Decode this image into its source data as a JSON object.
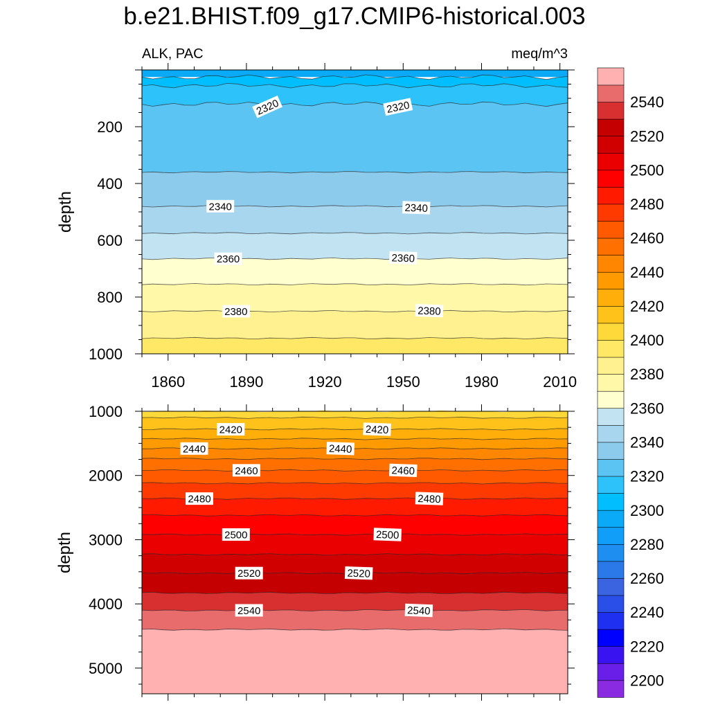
{
  "chart_data": {
    "type": "heatmap",
    "title": "b.e21.BHIST.f09_g17.CMIP6-historical.003",
    "left_label": "ALK, PAC",
    "right_label": "meq/m^3",
    "ylabel": "depth",
    "x_ticks": [
      1860,
      1890,
      1920,
      1950,
      1980,
      2010
    ],
    "xlim": [
      1850,
      2013
    ],
    "upper_panel": {
      "ylim": [
        0,
        1000
      ],
      "y_ticks": [
        200,
        400,
        600,
        800,
        1000
      ],
      "boundaries": [
        {
          "level": 2300,
          "depth": 25
        },
        {
          "level": 2310,
          "depth": 55
        },
        {
          "level": 2320,
          "depth": 120
        },
        {
          "level": 2330,
          "depth": 360
        },
        {
          "level": 2340,
          "depth": 480
        },
        {
          "level": 2350,
          "depth": 575
        },
        {
          "level": 2360,
          "depth": 665
        },
        {
          "level": 2370,
          "depth": 755
        },
        {
          "level": 2380,
          "depth": 850
        },
        {
          "level": 2390,
          "depth": 945
        }
      ],
      "contour_labels": [
        {
          "text": "2320",
          "year": 1898,
          "depth": 130
        },
        {
          "text": "2320",
          "year": 1948,
          "depth": 130
        },
        {
          "text": "2340",
          "year": 1880,
          "depth": 480
        },
        {
          "text": "2340",
          "year": 1955,
          "depth": 485
        },
        {
          "text": "2360",
          "year": 1883,
          "depth": 665
        },
        {
          "text": "2360",
          "year": 1950,
          "depth": 662
        },
        {
          "text": "2380",
          "year": 1886,
          "depth": 850
        },
        {
          "text": "2380",
          "year": 1960,
          "depth": 848
        }
      ]
    },
    "lower_panel": {
      "ylim": [
        1000,
        5400
      ],
      "y_ticks": [
        1000,
        2000,
        3000,
        4000,
        5000
      ],
      "boundaries": [
        {
          "level": 2400,
          "depth": 1000
        },
        {
          "level": 2410,
          "depth": 1100
        },
        {
          "level": 2420,
          "depth": 1280
        },
        {
          "level": 2430,
          "depth": 1430
        },
        {
          "level": 2440,
          "depth": 1580
        },
        {
          "level": 2450,
          "depth": 1740
        },
        {
          "level": 2460,
          "depth": 1920
        },
        {
          "level": 2470,
          "depth": 2120
        },
        {
          "level": 2480,
          "depth": 2360
        },
        {
          "level": 2490,
          "depth": 2620
        },
        {
          "level": 2500,
          "depth": 2920
        },
        {
          "level": 2510,
          "depth": 3230
        },
        {
          "level": 2520,
          "depth": 3520
        },
        {
          "level": 2530,
          "depth": 3830
        },
        {
          "level": 2540,
          "depth": 4100
        },
        {
          "level": 2550,
          "depth": 4400
        }
      ],
      "contour_labels": [
        {
          "text": "2420",
          "year": 1884,
          "depth": 1280
        },
        {
          "text": "2420",
          "year": 1940,
          "depth": 1280
        },
        {
          "text": "2440",
          "year": 1870,
          "depth": 1580
        },
        {
          "text": "2440",
          "year": 1926,
          "depth": 1580
        },
        {
          "text": "2460",
          "year": 1890,
          "depth": 1920
        },
        {
          "text": "2460",
          "year": 1950,
          "depth": 1920
        },
        {
          "text": "2480",
          "year": 1872,
          "depth": 2360
        },
        {
          "text": "2480",
          "year": 1960,
          "depth": 2360
        },
        {
          "text": "2500",
          "year": 1886,
          "depth": 2920
        },
        {
          "text": "2500",
          "year": 1944,
          "depth": 2920
        },
        {
          "text": "2520",
          "year": 1891,
          "depth": 3520
        },
        {
          "text": "2520",
          "year": 1933,
          "depth": 3520
        },
        {
          "text": "2540",
          "year": 1891,
          "depth": 4100
        },
        {
          "text": "2540",
          "year": 1956,
          "depth": 4100
        }
      ]
    },
    "colorbar": {
      "levels": [
        2200,
        2210,
        2220,
        2230,
        2240,
        2250,
        2260,
        2270,
        2280,
        2290,
        2300,
        2310,
        2320,
        2330,
        2340,
        2350,
        2360,
        2370,
        2380,
        2390,
        2400,
        2410,
        2420,
        2430,
        2440,
        2450,
        2460,
        2470,
        2480,
        2490,
        2500,
        2510,
        2520,
        2530,
        2540,
        2550
      ],
      "tick_labels": [
        "2200",
        "2220",
        "2240",
        "2260",
        "2280",
        "2300",
        "2320",
        "2340",
        "2360",
        "2380",
        "2400",
        "2420",
        "2440",
        "2460",
        "2480",
        "2500",
        "2520",
        "2540"
      ],
      "colors": [
        "#8a2be2",
        "#6a1fe8",
        "#3a14f0",
        "#0000ff",
        "#2030f0",
        "#2a4ee8",
        "#3a64e0",
        "#2b78e8",
        "#1e8ef0",
        "#109ef8",
        "#0aaaf8",
        "#00beff",
        "#2ec2fa",
        "#5cc4f2",
        "#8ccbec",
        "#a8d6ee",
        "#c2e4f2",
        "#ffffd0",
        "#fff8a8",
        "#fff090",
        "#ffe866",
        "#ffd83a",
        "#ffc21a",
        "#ffae0a",
        "#ff9a00",
        "#ff8600",
        "#ff7000",
        "#ff5a00",
        "#ff3a00",
        "#ff1a00",
        "#ff0000",
        "#ea0000",
        "#d00000",
        "#c40000",
        "#d83030",
        "#e86c6c",
        "#ffb0b0"
      ]
    }
  }
}
